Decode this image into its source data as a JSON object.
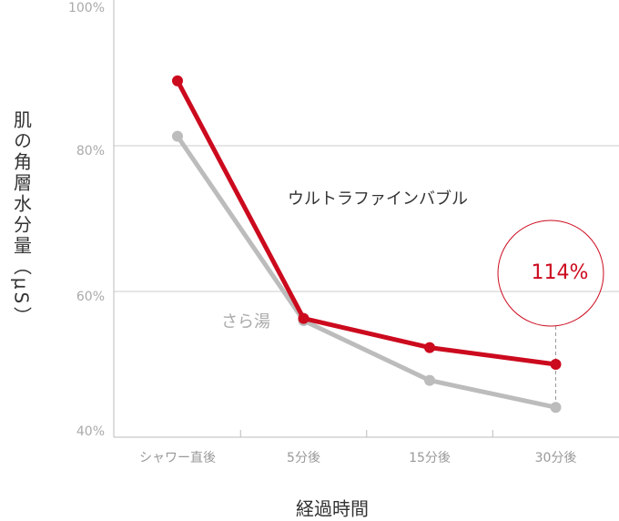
{
  "chart_data": {
    "type": "line",
    "y_label": "肌の角層水分量（μS）",
    "x_label": "経過時間",
    "categories": [
      "シャワー直後",
      "5分後",
      "15分後",
      "30分後"
    ],
    "series": [
      {
        "name": "ウルトラファインバブル",
        "color": "#cc0a1e",
        "values": [
          88.9,
          56.3,
          52.3,
          50.0
        ]
      },
      {
        "name": "さら湯",
        "color": "#bcbcbc",
        "values": [
          81.3,
          56.0,
          47.8,
          44.1
        ]
      }
    ],
    "annotation": "114%",
    "ylim": [
      40,
      100
    ],
    "yticks": [
      {
        "value": 40,
        "label": "40%"
      },
      {
        "value": 60,
        "label": "60%"
      },
      {
        "value": 80,
        "label": "80%"
      },
      {
        "value": 100,
        "label": "100%"
      }
    ],
    "grid": true
  }
}
